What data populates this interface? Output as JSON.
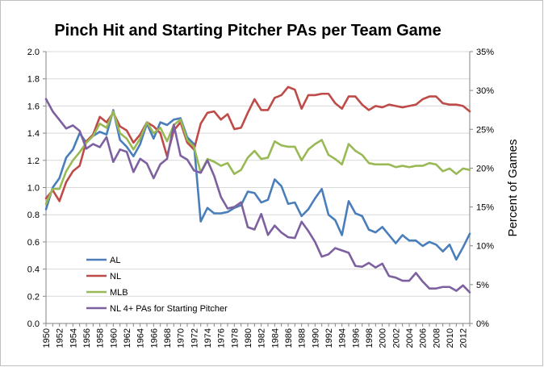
{
  "chart_data": {
    "type": "line",
    "title": "Pinch Hit and Starting Pitcher PAs per Team Game",
    "xlabel": "",
    "ylabel": "",
    "y2label": "Percent of Games",
    "ylim": [
      0,
      2.0
    ],
    "yticks": [
      "0.0",
      "0.2",
      "0.4",
      "0.6",
      "0.8",
      "1.0",
      "1.2",
      "1.4",
      "1.6",
      "1.8",
      "2.0"
    ],
    "y2lim": [
      0,
      35
    ],
    "y2ticks": [
      "0%",
      "5%",
      "10%",
      "15%",
      "20%",
      "25%",
      "30%",
      "35%"
    ],
    "grid": "horizontal",
    "legend_position": "bottom-left",
    "x": [
      1950,
      1951,
      1952,
      1953,
      1954,
      1955,
      1956,
      1957,
      1958,
      1959,
      1960,
      1961,
      1962,
      1963,
      1964,
      1965,
      1966,
      1967,
      1968,
      1969,
      1970,
      1971,
      1972,
      1973,
      1974,
      1975,
      1976,
      1977,
      1978,
      1979,
      1980,
      1981,
      1982,
      1983,
      1984,
      1985,
      1986,
      1987,
      1988,
      1989,
      1990,
      1991,
      1992,
      1993,
      1994,
      1995,
      1996,
      1997,
      1998,
      1999,
      2000,
      2001,
      2002,
      2003,
      2004,
      2005,
      2006,
      2007,
      2008,
      2009,
      2010,
      2011,
      2012,
      2013
    ],
    "xtick_labels": [
      "1950",
      "1952",
      "1954",
      "1956",
      "1958",
      "1960",
      "1962",
      "1964",
      "1966",
      "1968",
      "1970",
      "1972",
      "1974",
      "1976",
      "1978",
      "1980",
      "1982",
      "1984",
      "1986",
      "1988",
      "1990",
      "1992",
      "1994",
      "1996",
      "1998",
      "2000",
      "2002",
      "2004",
      "2006",
      "2008",
      "2010",
      "2012"
    ],
    "series": [
      {
        "name": "AL",
        "color": "#4a7ebb",
        "axis": "left",
        "values": [
          0.84,
          1.0,
          1.07,
          1.22,
          1.28,
          1.4,
          1.33,
          1.38,
          1.41,
          1.39,
          1.57,
          1.35,
          1.3,
          1.23,
          1.32,
          1.47,
          1.36,
          1.48,
          1.46,
          1.5,
          1.51,
          1.37,
          1.32,
          0.75,
          0.85,
          0.81,
          0.81,
          0.82,
          0.85,
          0.87,
          0.97,
          0.96,
          0.89,
          0.91,
          1.06,
          1.01,
          0.88,
          0.89,
          0.79,
          0.84,
          0.92,
          0.99,
          0.8,
          0.76,
          0.65,
          0.9,
          0.81,
          0.79,
          0.69,
          0.67,
          0.71,
          0.65,
          0.59,
          0.65,
          0.61,
          0.61,
          0.57,
          0.6,
          0.58,
          0.53,
          0.58,
          0.47,
          0.56,
          0.66
        ]
      },
      {
        "name": "NL",
        "color": "#be4b48",
        "axis": "left",
        "values": [
          0.92,
          0.98,
          0.9,
          1.04,
          1.12,
          1.16,
          1.34,
          1.39,
          1.52,
          1.48,
          1.55,
          1.45,
          1.42,
          1.33,
          1.39,
          1.48,
          1.45,
          1.4,
          1.23,
          1.42,
          1.48,
          1.33,
          1.28,
          1.47,
          1.55,
          1.56,
          1.5,
          1.54,
          1.43,
          1.44,
          1.55,
          1.65,
          1.57,
          1.57,
          1.66,
          1.68,
          1.74,
          1.72,
          1.58,
          1.68,
          1.68,
          1.69,
          1.69,
          1.62,
          1.58,
          1.67,
          1.67,
          1.61,
          1.57,
          1.6,
          1.59,
          1.61,
          1.6,
          1.59,
          1.6,
          1.61,
          1.65,
          1.67,
          1.67,
          1.62,
          1.61,
          1.61,
          1.6,
          1.56
        ]
      },
      {
        "name": "MLB",
        "color": "#98b954",
        "axis": "left",
        "values": [
          0.88,
          0.99,
          0.99,
          1.12,
          1.2,
          1.26,
          1.33,
          1.38,
          1.47,
          1.44,
          1.56,
          1.4,
          1.36,
          1.28,
          1.36,
          1.48,
          1.4,
          1.44,
          1.34,
          1.46,
          1.5,
          1.35,
          1.3,
          1.11,
          1.21,
          1.19,
          1.16,
          1.18,
          1.1,
          1.13,
          1.22,
          1.27,
          1.21,
          1.22,
          1.34,
          1.31,
          1.3,
          1.3,
          1.2,
          1.28,
          1.32,
          1.35,
          1.24,
          1.21,
          1.17,
          1.32,
          1.27,
          1.24,
          1.18,
          1.17,
          1.17,
          1.17,
          1.15,
          1.16,
          1.15,
          1.16,
          1.16,
          1.18,
          1.17,
          1.12,
          1.14,
          1.1,
          1.14,
          1.13
        ]
      },
      {
        "name": "NL 4+ PAs for Starting Pitcher",
        "color": "#7d60a0",
        "axis": "right",
        "values": [
          28.9,
          27.3,
          26.2,
          25.1,
          25.5,
          24.8,
          22.5,
          23.1,
          22.7,
          24.0,
          20.8,
          22.4,
          22.1,
          19.5,
          21.2,
          20.6,
          18.7,
          20.5,
          21.2,
          25.6,
          21.6,
          21.1,
          19.7,
          19.4,
          21.0,
          19.0,
          16.3,
          14.8,
          15.0,
          15.6,
          12.4,
          12.1,
          14.1,
          11.4,
          12.6,
          11.7,
          11.1,
          11.0,
          13.1,
          11.9,
          10.5,
          8.6,
          8.9,
          9.7,
          9.4,
          9.1,
          7.4,
          7.3,
          7.8,
          7.2,
          7.7,
          6.1,
          5.9,
          5.5,
          5.5,
          6.5,
          5.4,
          4.5,
          4.5,
          4.7,
          4.7,
          4.2,
          4.9,
          4.0
        ]
      }
    ]
  }
}
